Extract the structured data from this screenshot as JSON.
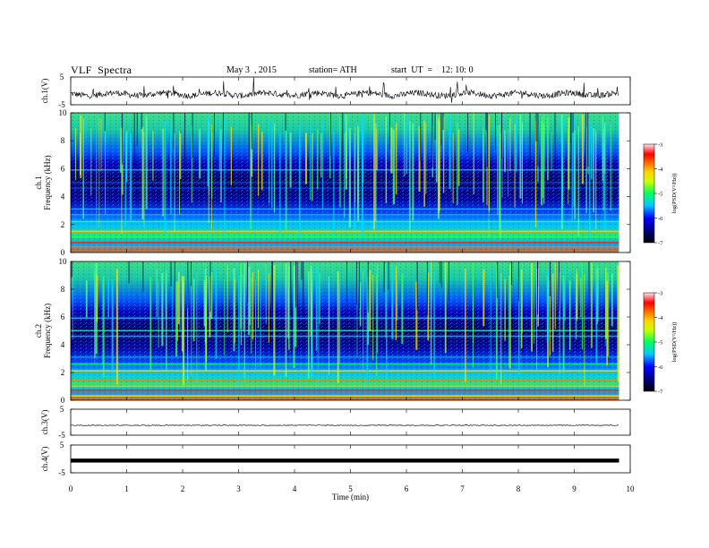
{
  "header": {
    "title": "VLF  Spectra",
    "date": "May 3  , 2015",
    "station": "station= ATH",
    "start": "start  UT  =    12: 10: 0"
  },
  "chart_data": [
    {
      "type": "line",
      "name": "ch1-waveform",
      "ylabel": "ch.1(V)",
      "ylim": [
        -5,
        5
      ],
      "yticks": [
        "5",
        "-5"
      ],
      "xlim": [
        0,
        10
      ],
      "color": "#000000"
    },
    {
      "type": "heatmap",
      "name": "ch1-spectrogram",
      "ylabel": "ch.1\nFrequency  (kHz)",
      "ylim": [
        0,
        10
      ],
      "yticks": [
        "0",
        "2",
        "4",
        "6",
        "8",
        "10"
      ],
      "xlim": [
        0,
        9.8
      ],
      "colorbar": {
        "label": "log(PSD(V²/Hz))",
        "range": [
          -7,
          -3
        ],
        "ticks": [
          "-3",
          "-4",
          "-5",
          "-6",
          "-7"
        ]
      }
    },
    {
      "type": "heatmap",
      "name": "ch2-spectrogram",
      "ylabel": "ch.2\nFrequency  (kHz)",
      "ylim": [
        0,
        10
      ],
      "yticks": [
        "0",
        "2",
        "4",
        "6",
        "8",
        "10"
      ],
      "xlim": [
        0,
        9.8
      ],
      "colorbar": {
        "label": "log(PSD(V²/Hz))",
        "range": [
          -7,
          -3
        ],
        "ticks": [
          "-3",
          "-4",
          "-5",
          "-6",
          "-7"
        ]
      }
    },
    {
      "type": "line",
      "name": "ch3-waveform",
      "ylabel": "ch.3(V)",
      "ylim": [
        -5,
        5
      ],
      "yticks": [
        "5",
        "-5"
      ],
      "xlim": [
        0,
        10
      ],
      "color": "#000000"
    },
    {
      "type": "line",
      "name": "ch4-waveform",
      "ylabel": "ch.4(V)",
      "ylim": [
        -5,
        5
      ],
      "yticks": [
        "5",
        "-5"
      ],
      "xlim": [
        0,
        10
      ],
      "color": "#000000"
    }
  ],
  "xaxis": {
    "label": "Time  (min)",
    "range": [
      0,
      10
    ],
    "ticks": [
      "0",
      "1",
      "2",
      "3",
      "4",
      "5",
      "6",
      "7",
      "8",
      "9",
      "10"
    ]
  }
}
